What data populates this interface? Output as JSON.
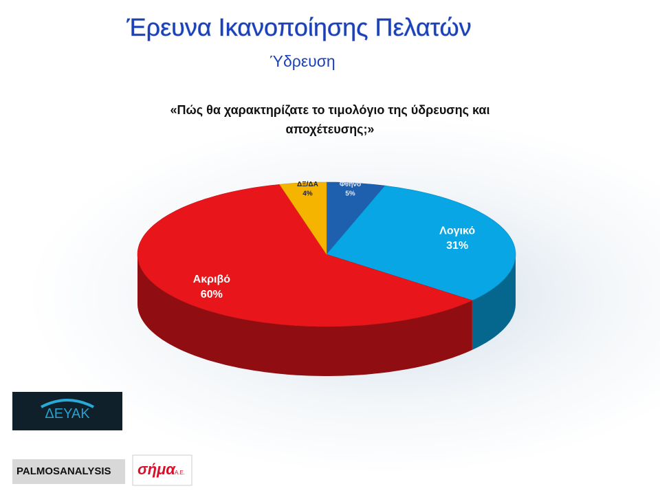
{
  "chart_data": {
    "type": "pie3d",
    "title": "Έρευνα Ικανοποίησης Πελατών",
    "subtitle": "Ύδρευση",
    "question": "«Πώς θα χαρακτηρίζατε το τιμολόγιο της ύδρευσης και αποχέτευσης;»",
    "categories": [
      "Φθηνό",
      "Λογικό",
      "Ακριβό",
      "ΔΞ/ΔΑ"
    ],
    "values": [
      5,
      31,
      60,
      4
    ],
    "value_labels": [
      "5%",
      "31%",
      "60%",
      "4%"
    ],
    "colors": [
      "#1e5fae",
      "#08a6e4",
      "#e8161b",
      "#f4b400"
    ]
  },
  "logos": {
    "deyak": "ΔΕΥΑΚ",
    "palmos": "PALMOSANALYSIS",
    "sima": "σήμα",
    "sima_suffix": "Α.Ε."
  }
}
